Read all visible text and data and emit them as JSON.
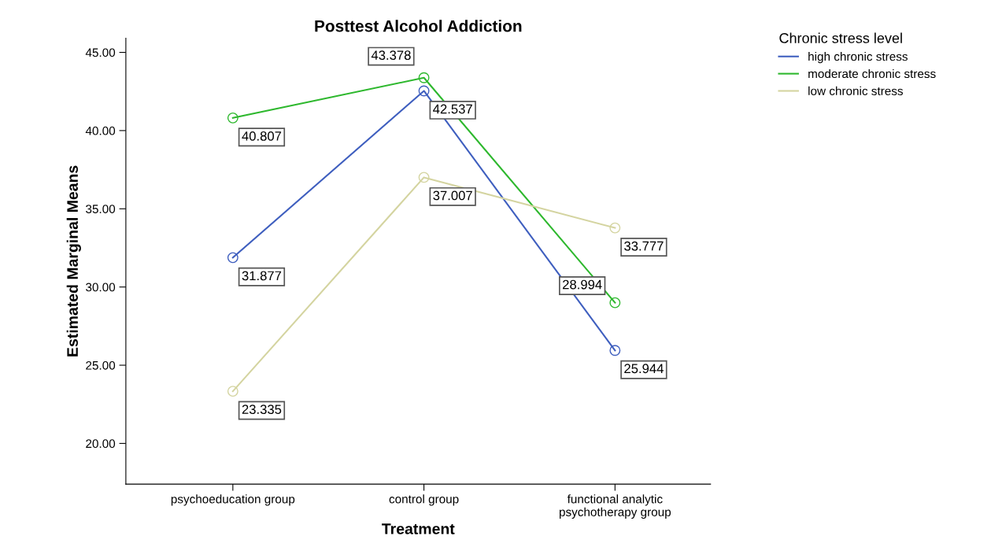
{
  "chart_data": {
    "type": "line",
    "title": "Posttest Alcohol Addiction",
    "xlabel": "Treatment",
    "ylabel": "Estimated Marginal Means",
    "legend_title": "Chronic stress level",
    "categories": [
      "psychoeducation group",
      "control group",
      "functional analytic\npsychotherapy group"
    ],
    "series": [
      {
        "name": "high chronic stress",
        "color": "#3f5fbf",
        "values": [
          31.877,
          42.537,
          25.944
        ]
      },
      {
        "name": "moderate chronic stress",
        "color": "#2eb82e",
        "values": [
          40.807,
          43.378,
          28.994
        ]
      },
      {
        "name": "low chronic stress",
        "color": "#d4d4a0",
        "values": [
          23.335,
          37.007,
          33.777
        ]
      }
    ],
    "ylim": [
      17.4,
      45.9
    ],
    "yticks": [
      {
        "value": 20,
        "label": "20.00"
      },
      {
        "value": 25,
        "label": "25.00"
      },
      {
        "value": 30,
        "label": "30.00"
      },
      {
        "value": 35,
        "label": "35.00"
      },
      {
        "value": 40,
        "label": "40.00"
      },
      {
        "value": 45,
        "label": "45.00"
      }
    ],
    "data_labels": true,
    "marker": "circle",
    "line_style": "solid",
    "legend": "top right",
    "grid": false
  }
}
